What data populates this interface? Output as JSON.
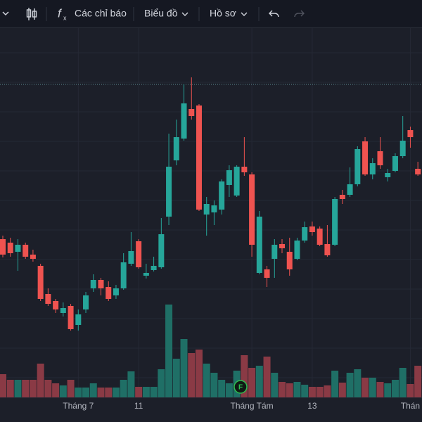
{
  "toolbar": {
    "indicators": "Các chỉ báo",
    "chart": "Biểu đồ",
    "profile": "Hồ sơ"
  },
  "chart_data": {
    "type": "candlestick",
    "categories": [
      null,
      null,
      null,
      null,
      null,
      null,
      null,
      null,
      null,
      null,
      "Tháng 7",
      null,
      null,
      null,
      null,
      null,
      null,
      null,
      "11",
      null,
      null,
      null,
      null,
      null,
      null,
      null,
      null,
      null,
      null,
      null,
      null,
      null,
      null,
      "Tháng Tám",
      null,
      null,
      null,
      null,
      null,
      null,
      null,
      "13",
      null,
      null,
      null,
      null,
      null,
      null,
      null,
      null,
      null,
      null,
      null,
      null,
      "Thán",
      null
    ],
    "open": [
      260,
      255,
      242,
      252,
      238,
      222,
      182,
      172,
      155,
      165,
      138,
      160,
      190,
      202,
      192,
      180,
      190,
      225,
      257,
      208,
      216,
      220,
      292,
      372,
      403,
      445,
      450,
      295,
      298,
      302,
      337,
      322,
      363,
      352,
      212,
      217,
      232,
      253,
      242,
      232,
      258,
      278,
      275,
      253,
      252,
      323,
      323,
      338,
      399,
      352,
      385,
      348,
      357,
      378,
      415,
      360
    ],
    "high": [
      265,
      262,
      260,
      255,
      245,
      225,
      190,
      175,
      170,
      168,
      160,
      185,
      210,
      205,
      200,
      195,
      240,
      270,
      260,
      225,
      235,
      290,
      410,
      430,
      480,
      490,
      452,
      320,
      315,
      345,
      365,
      365,
      405,
      355,
      300,
      222,
      260,
      260,
      262,
      262,
      285,
      285,
      278,
      280,
      320,
      330,
      362,
      392,
      405,
      375,
      405,
      360,
      382,
      435,
      420,
      370
    ],
    "low": [
      234,
      235,
      215,
      232,
      228,
      172,
      165,
      155,
      150,
      130,
      130,
      155,
      185,
      180,
      172,
      175,
      188,
      222,
      218,
      204,
      214,
      218,
      280,
      365,
      400,
      430,
      300,
      265,
      280,
      295,
      320,
      320,
      350,
      235,
      210,
      192,
      205,
      240,
      208,
      230,
      255,
      265,
      250,
      235,
      250,
      310,
      320,
      335,
      350,
      345,
      360,
      342,
      355,
      375,
      390,
      350
    ],
    "close": [
      238,
      240,
      252,
      235,
      232,
      175,
      168,
      160,
      162,
      132,
      153,
      180,
      202,
      190,
      175,
      190,
      227,
      243,
      220,
      212,
      222,
      267,
      363,
      405,
      453,
      435,
      302,
      310,
      308,
      342,
      358,
      363,
      355,
      252,
      292,
      205,
      252,
      247,
      217,
      258,
      277,
      270,
      252,
      237,
      317,
      317,
      338,
      388,
      352,
      368,
      365,
      354,
      378,
      400,
      405,
      352
    ],
    "volume": [
      33,
      25,
      25,
      25,
      25,
      48,
      25,
      20,
      17,
      25,
      14,
      14,
      20,
      14,
      14,
      14,
      25,
      37,
      15,
      15,
      15,
      40,
      132,
      55,
      83,
      63,
      68,
      48,
      35,
      25,
      20,
      38,
      60,
      42,
      45,
      58,
      35,
      22,
      20,
      22,
      18,
      15,
      15,
      17,
      38,
      21,
      35,
      40,
      28,
      28,
      22,
      20,
      25,
      42,
      19,
      45
    ],
    "up_color": "#26a69a",
    "down_color": "#ef5350",
    "up_volume_color": "#1f6f66",
    "down_volume_color": "#8a3a45",
    "ylim": [
      35,
      560
    ],
    "y2lim": [
      0,
      525
    ],
    "hline": 480,
    "grid": true,
    "marker": "F"
  }
}
